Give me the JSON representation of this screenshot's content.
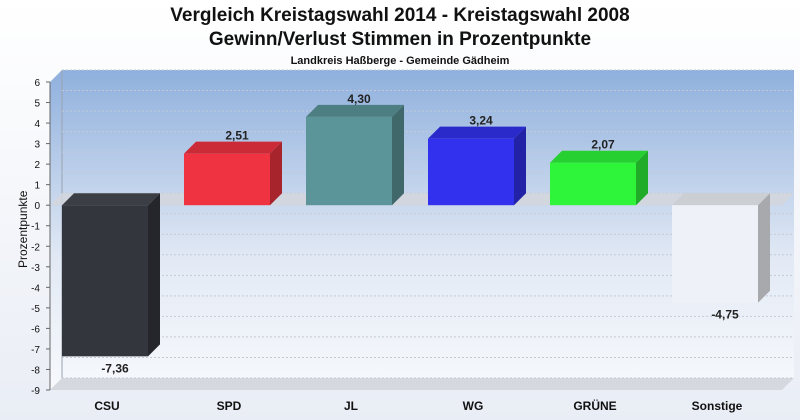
{
  "title_line1": "Vergleich Kreistagswahl 2014 - Kreistagswahl 2008",
  "title_line2": "Gewinn/Verlust Stimmen in Prozentpunkte",
  "subtitle": "Landkreis Haßberge - Gemeinde Gädheim",
  "chart_data": {
    "type": "bar",
    "title": "Vergleich Kreistagswahl 2014 - Kreistagswahl 2008 / Gewinn/Verlust Stimmen in Prozentpunkte",
    "subtitle": "Landkreis Haßberge - Gemeinde Gädheim",
    "ylabel": "Prozentpunkte",
    "xlabel": "",
    "ylim": [
      -9,
      6
    ],
    "yticks": [
      6,
      5,
      4,
      3,
      2,
      1,
      0,
      -1,
      -2,
      -3,
      -4,
      -5,
      -6,
      -7,
      -8,
      -9
    ],
    "grid": true,
    "categories": [
      "CSU",
      "SPD",
      "JL",
      "WG",
      "GRÜNE",
      "Sonstige"
    ],
    "values": [
      -7.36,
      2.51,
      4.3,
      3.24,
      2.07,
      -4.75
    ],
    "value_labels": [
      "-7,36",
      "2,51",
      "4,30",
      "3,24",
      "2,07",
      "-4,75"
    ],
    "colors": [
      "#33363d",
      "#ef3340",
      "#5b9599",
      "#3131ee",
      "#2ef53a",
      "#eef1f7"
    ]
  }
}
